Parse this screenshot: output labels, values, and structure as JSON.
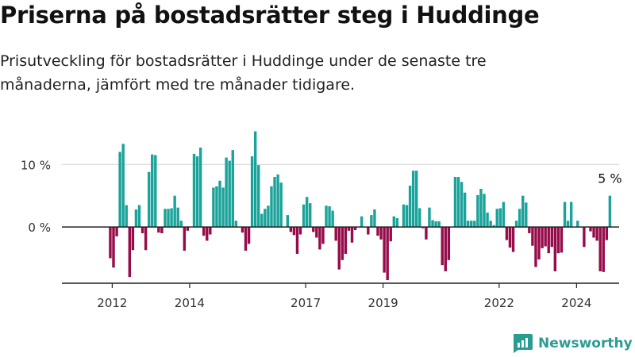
{
  "title": "Priserna på bostadsrätter steg i Huddinge",
  "subtitle": "Prisutveckling för bostadsrätter i Huddinge under de senaste tre månaderna, jämfört med tre månader tidigare.",
  "brand": {
    "name": "Newsworthy",
    "icon": "newsworthy-logo-icon",
    "color": "#2a9d93"
  },
  "colors": {
    "positive": "#1aa39a",
    "negative": "#960c4a"
  },
  "chart_data": {
    "type": "bar",
    "title": "Priserna på bostadsrätter steg i Huddinge",
    "subtitle": "Prisutveckling för bostadsrätter i Huddinge under de senaste tre månaderna, jämfört med tre månader tidigare.",
    "unit": "%",
    "xlabel": "",
    "ylabel": "",
    "x_start": 2011.95,
    "x_step": 0.0833,
    "xlim": [
      2010.7,
      2025.1
    ],
    "ylim": [
      -9,
      16
    ],
    "y_ticks": [
      {
        "value": 10,
        "label": "10 %"
      },
      {
        "value": 0,
        "label": "0 %"
      }
    ],
    "x_ticks": [
      {
        "value": 2012,
        "label": "2012"
      },
      {
        "value": 2014,
        "label": "2014"
      },
      {
        "value": 2017,
        "label": "2017"
      },
      {
        "value": 2019,
        "label": "2019"
      },
      {
        "value": 2022,
        "label": "2022"
      },
      {
        "value": 2024,
        "label": "2024"
      }
    ],
    "grid": true,
    "legend": "none",
    "annotation": {
      "label": "5 %",
      "target": "last"
    },
    "values": [
      -5,
      -6.5,
      -1.5,
      12,
      13.3,
      3.5,
      -8,
      -3.7,
      2.8,
      3.5,
      -1,
      -3.7,
      8.8,
      11.6,
      11.5,
      -0.9,
      -1,
      2.9,
      2.9,
      3,
      5,
      3.1,
      1,
      -3.8,
      -0.6,
      0,
      11.7,
      11.3,
      12.7,
      -1.4,
      -2.2,
      -1.2,
      6.3,
      6.5,
      7.4,
      6.3,
      11.1,
      10.6,
      12.3,
      1,
      0,
      -0.9,
      -3.8,
      -2.7,
      11.3,
      15.3,
      9.9,
      2.1,
      2.9,
      3.4,
      6.5,
      8,
      8.4,
      7.1,
      0,
      1.9,
      -0.8,
      -1.3,
      -4.3,
      -1.2,
      3.6,
      4.8,
      3.8,
      -0.8,
      -1.7,
      -3.6,
      -2.7,
      3.4,
      3.3,
      2.6,
      -2.2,
      -6.8,
      -5.3,
      -4.3,
      -0.6,
      -2.5,
      -0.5,
      0,
      1.7,
      0,
      -1.2,
      1.9,
      2.8,
      -1.4,
      -2,
      -7.3,
      -8.5,
      -2.3,
      1.7,
      1.4,
      0,
      3.6,
      3.5,
      6.6,
      9,
      9,
      3,
      -0.2,
      -2,
      3.1,
      1.1,
      0.9,
      0.9,
      -6.1,
      -7.1,
      -5.3,
      0,
      8,
      8,
      7.2,
      5.5,
      1,
      1,
      1,
      5.1,
      6.1,
      5.3,
      2.3,
      1,
      0.3,
      2.9,
      3,
      4,
      -2.1,
      -3.3,
      -4,
      1,
      2.9,
      5,
      3.9,
      -1,
      -3,
      -6.4,
      -5.2,
      -3.4,
      -3.1,
      -4.2,
      -3.2,
      -7.1,
      -4.2,
      -4.1,
      4,
      1,
      4,
      0,
      1,
      0,
      -3.2,
      0,
      -0.7,
      -1.7,
      -2.2,
      -7.1,
      -7.2,
      -2.1,
      5
    ]
  }
}
